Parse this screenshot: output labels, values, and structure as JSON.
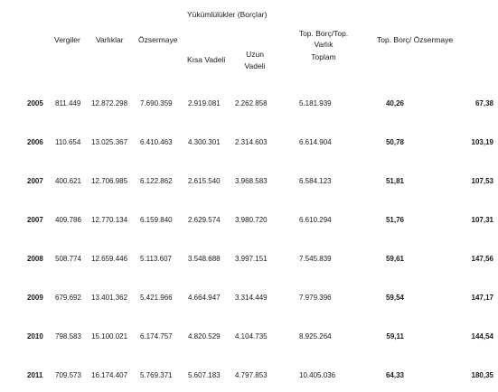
{
  "header": {
    "group_title": "Yükümlülükler (Borçlar)",
    "col_vergiler": "Vergiler",
    "col_varliklar": "Varlıklar",
    "col_ozsermaye": "Özsermaye",
    "col_kisa_vadeli": "Kısa Vadeli",
    "col_uzun_line1": "Uzun",
    "col_uzun_line2": "Vadeli",
    "col_topborc_line1": "Top. Borç/Top.",
    "col_topborc_line2": "Varlık",
    "col_toplam": "Toplam",
    "col_topborc_ozsermaye": "Top. Borç/ Özsermaye"
  },
  "rows": [
    {
      "year": "2005",
      "vergiler": "811.449",
      "varliklar": "12.872.298",
      "ozsermaye": "7.690.359",
      "kisa": "2.919.081",
      "uzun": "2.262.858",
      "toplam": "5.181.939",
      "ratio1": "40,26",
      "ratio2": "67,38"
    },
    {
      "year": "2006",
      "vergiler": "110.654",
      "varliklar": "13.025.367",
      "ozsermaye": "6.410.463",
      "kisa": "4.300.301",
      "uzun": "2.314.603",
      "toplam": "6.614.904",
      "ratio1": "50,78",
      "ratio2": "103,19"
    },
    {
      "year": "2007",
      "vergiler": "400.621",
      "varliklar": "12.706.985",
      "ozsermaye": "6.122.862",
      "kisa": "2.615.540",
      "uzun": "3.968.583",
      "toplam": "6.584.123",
      "ratio1": "51,81",
      "ratio2": "107,53"
    },
    {
      "year": "2007",
      "vergiler": "409.786",
      "varliklar": "12.770.134",
      "ozsermaye": "6.159.840",
      "kisa": "2.629.574",
      "uzun": "3.980.720",
      "toplam": "6.610.294",
      "ratio1": "51,76",
      "ratio2": "107,31"
    },
    {
      "year": "2008",
      "vergiler": "508.774",
      "varliklar": "12.659.446",
      "ozsermaye": "5.113.607",
      "kisa": "3.548.688",
      "uzun": "3.997.151",
      "toplam": "7.545.839",
      "ratio1": "59,61",
      "ratio2": "147,56"
    },
    {
      "year": "2009",
      "vergiler": "679.692",
      "varliklar": "13.401.362",
      "ozsermaye": "5.421.966",
      "kisa": "4.664.947",
      "uzun": "3.314.449",
      "toplam": "7.979.396",
      "ratio1": "59,54",
      "ratio2": "147,17"
    },
    {
      "year": "2010",
      "vergiler": "798.583",
      "varliklar": "15.100.021",
      "ozsermaye": "6.174.757",
      "kisa": "4.820.529",
      "uzun": "4.104.735",
      "toplam": "8.925.264",
      "ratio1": "59,11",
      "ratio2": "144,54"
    },
    {
      "year": "2011",
      "vergiler": "709.573",
      "varliklar": "16.174.407",
      "ozsermaye": "5.769.371",
      "kisa": "5.607.183",
      "uzun": "4.797.853",
      "toplam": "10.405.036",
      "ratio1": "64,33",
      "ratio2": "180,35"
    }
  ]
}
